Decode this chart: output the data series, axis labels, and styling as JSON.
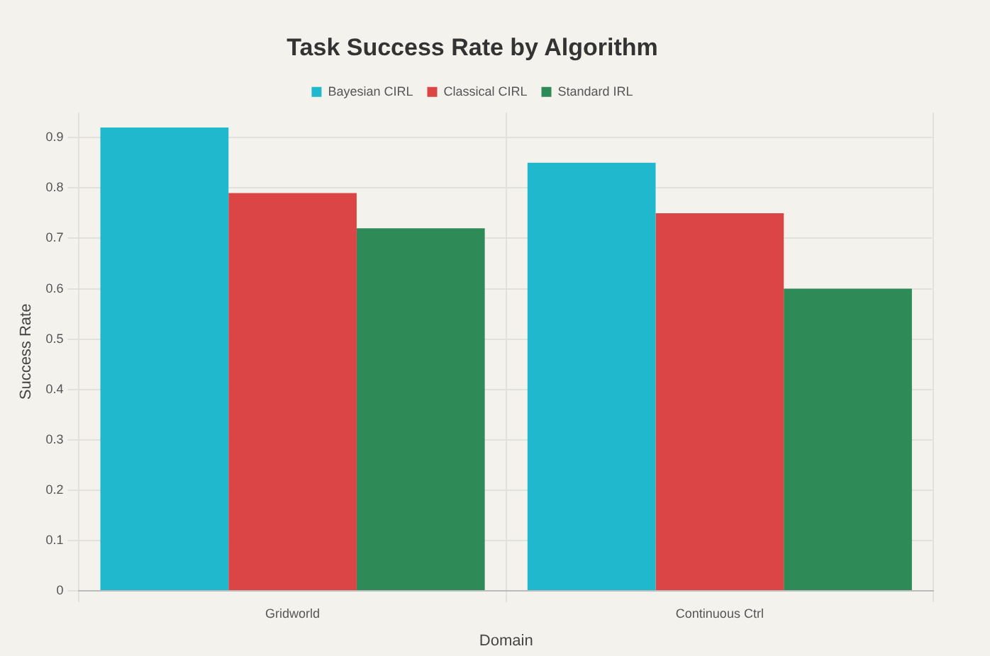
{
  "chart_data": {
    "type": "bar",
    "title": "Task Success Rate by Algorithm",
    "xlabel": "Domain",
    "ylabel": "Success Rate",
    "categories": [
      "Gridworld",
      "Continuous Ctrl"
    ],
    "series": [
      {
        "name": "Bayesian CIRL",
        "color": "#1fb8cd",
        "values": [
          0.92,
          0.85
        ]
      },
      {
        "name": "Classical CIRL",
        "color": "#db4545",
        "values": [
          0.79,
          0.75
        ]
      },
      {
        "name": "Standard IRL",
        "color": "#2e8b57",
        "values": [
          0.72,
          0.6
        ]
      }
    ],
    "ylim": [
      0,
      0.95
    ],
    "yticks": [
      0,
      0.1,
      0.2,
      0.3,
      0.4,
      0.5,
      0.6,
      0.7,
      0.8,
      0.9
    ],
    "grid": true,
    "legend": "top"
  }
}
